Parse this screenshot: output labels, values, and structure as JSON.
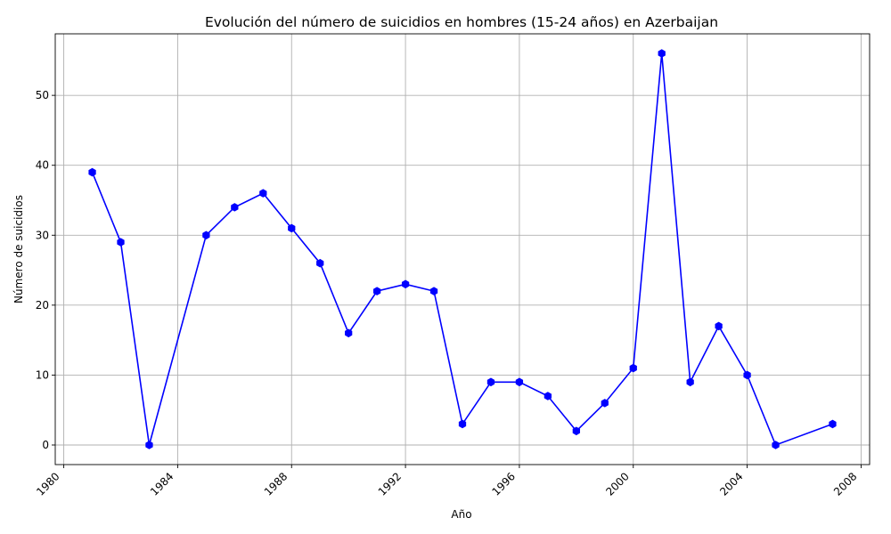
{
  "chart_data": {
    "type": "line",
    "title": "Evolución del número de suicidios en hombres (15-24 años) en Azerbaijan",
    "xlabel": "Año",
    "ylabel": "Número de suicidios",
    "xlim": [
      1979.7,
      2008.3
    ],
    "ylim": [
      -2.8,
      58.8
    ],
    "xticks": [
      1980,
      1984,
      1988,
      1992,
      1996,
      2000,
      2004,
      2008
    ],
    "yticks": [
      0,
      10,
      20,
      30,
      40,
      50
    ],
    "grid": true,
    "series": [
      {
        "color": "#0000ff",
        "marker": "hexagon",
        "x": [
          1981,
          1982,
          1983,
          1985,
          1986,
          1987,
          1988,
          1989,
          1990,
          1991,
          1992,
          1993,
          1994,
          1995,
          1996,
          1997,
          1998,
          1999,
          2000,
          2001,
          2002,
          2003,
          2004,
          2005,
          2007
        ],
        "y": [
          39,
          29,
          0,
          30,
          34,
          36,
          31,
          26,
          16,
          22,
          23,
          22,
          3,
          9,
          9,
          7,
          2,
          6,
          11,
          56,
          9,
          17,
          10,
          0,
          3
        ]
      }
    ]
  }
}
